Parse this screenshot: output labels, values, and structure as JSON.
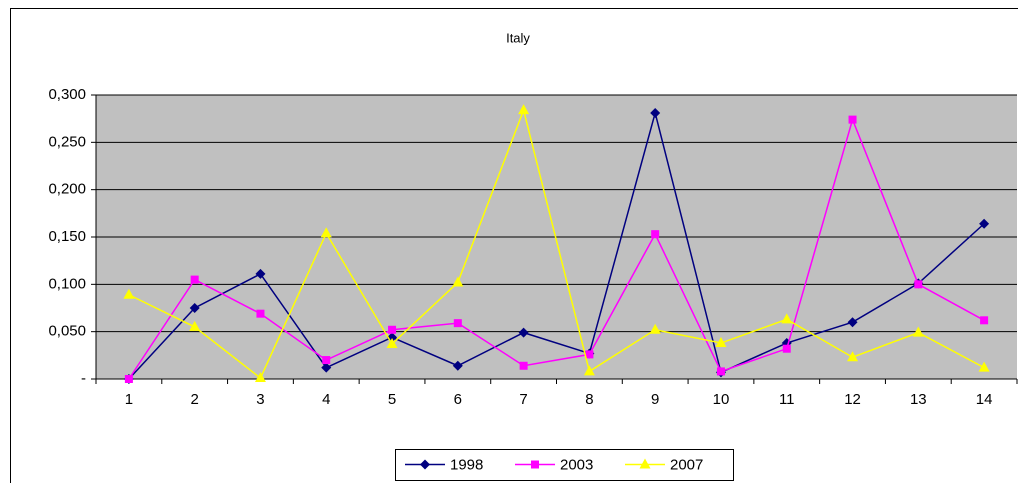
{
  "chart_data": {
    "type": "line",
    "title": "Italy",
    "categories": [
      "1",
      "2",
      "3",
      "4",
      "5",
      "6",
      "7",
      "8",
      "9",
      "10",
      "11",
      "12",
      "13",
      "14"
    ],
    "series": [
      {
        "name": "1998",
        "color": "#000080",
        "marker": "diamond",
        "values": [
          0,
          0.075,
          0.111,
          0.012,
          0.044,
          0.014,
          0.049,
          0.027,
          0.281,
          0.007,
          0.038,
          0.06,
          0.101,
          0.164
        ]
      },
      {
        "name": "2003",
        "color": "#ff00ff",
        "marker": "square",
        "values": [
          0,
          0.105,
          0.069,
          0.02,
          0.052,
          0.059,
          0.014,
          0.026,
          0.153,
          0.008,
          0.032,
          0.274,
          0.1,
          0.062
        ]
      },
      {
        "name": "2007",
        "color": "#ffff00",
        "marker": "triangle",
        "values": [
          0.089,
          0.055,
          0.001,
          0.154,
          0.037,
          0.102,
          0.284,
          0.008,
          0.052,
          0.038,
          0.063,
          0.023,
          0.049,
          0.012
        ]
      }
    ],
    "ylim": [
      0,
      0.3
    ],
    "yticks": [
      {
        "value": 0,
        "label": "-"
      },
      {
        "value": 0.05,
        "label": "0,050"
      },
      {
        "value": 0.1,
        "label": "0,100"
      },
      {
        "value": 0.15,
        "label": "0,150"
      },
      {
        "value": 0.2,
        "label": "0,200"
      },
      {
        "value": 0.25,
        "label": "0,250"
      },
      {
        "value": 0.3,
        "label": "0,300"
      }
    ],
    "grid": true,
    "legend": "bottom"
  }
}
